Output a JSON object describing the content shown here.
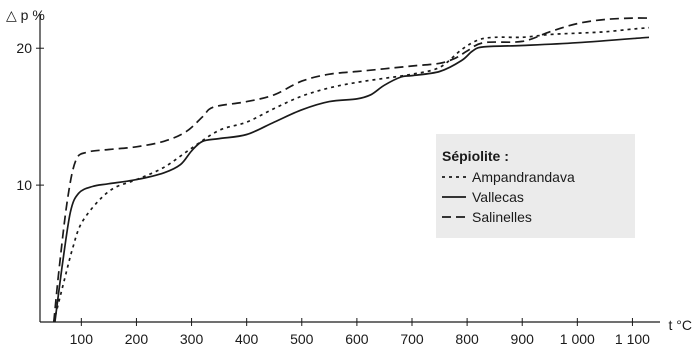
{
  "chart_data": {
    "type": "line",
    "title": "",
    "xlabel": "t °C",
    "ylabel": "△ p %",
    "xlim": [
      25,
      1150
    ],
    "ylim": [
      0,
      22.5
    ],
    "x_ticks": [
      {
        "value": 100,
        "label": "100"
      },
      {
        "value": 200,
        "label": "200"
      },
      {
        "value": 300,
        "label": "300"
      },
      {
        "value": 400,
        "label": "400"
      },
      {
        "value": 500,
        "label": "500"
      },
      {
        "value": 600,
        "label": "600"
      },
      {
        "value": 700,
        "label": "700"
      },
      {
        "value": 800,
        "label": "800"
      },
      {
        "value": 900,
        "label": "900"
      },
      {
        "value": 1000,
        "label": "1 000"
      },
      {
        "value": 1100,
        "label": "1 100"
      }
    ],
    "y_ticks": [
      {
        "value": 10,
        "label": "10"
      },
      {
        "value": 20,
        "label": "20"
      }
    ],
    "grid": false,
    "legend": {
      "title": "Sépiolite :",
      "position": "right",
      "background": "#ebebeb"
    },
    "series": [
      {
        "name": "Ampandrandava",
        "style": "dotted",
        "points": [
          [
            50,
            0
          ],
          [
            70,
            3.2
          ],
          [
            85,
            5.5
          ],
          [
            100,
            7.2
          ],
          [
            130,
            8.8
          ],
          [
            160,
            9.8
          ],
          [
            200,
            10.4
          ],
          [
            250,
            11.3
          ],
          [
            300,
            12.7
          ],
          [
            350,
            14
          ],
          [
            400,
            14.6
          ],
          [
            450,
            15.6
          ],
          [
            500,
            16.5
          ],
          [
            550,
            17.1
          ],
          [
            600,
            17.5
          ],
          [
            650,
            17.8
          ],
          [
            700,
            18.1
          ],
          [
            750,
            18.6
          ],
          [
            790,
            19.9
          ],
          [
            820,
            20.6
          ],
          [
            850,
            20.8
          ],
          [
            900,
            20.8
          ],
          [
            950,
            21
          ],
          [
            1000,
            21.1
          ],
          [
            1050,
            21.2
          ],
          [
            1100,
            21.4
          ],
          [
            1130,
            21.5
          ]
        ]
      },
      {
        "name": "Vallecas",
        "style": "solid",
        "points": [
          [
            52,
            0
          ],
          [
            65,
            4
          ],
          [
            80,
            8
          ],
          [
            95,
            9.4
          ],
          [
            120,
            9.9
          ],
          [
            150,
            10.1
          ],
          [
            200,
            10.4
          ],
          [
            250,
            10.9
          ],
          [
            280,
            11.5
          ],
          [
            300,
            12.5
          ],
          [
            320,
            13.2
          ],
          [
            350,
            13.4
          ],
          [
            400,
            13.7
          ],
          [
            450,
            14.6
          ],
          [
            500,
            15.5
          ],
          [
            550,
            16.1
          ],
          [
            600,
            16.3
          ],
          [
            625,
            16.6
          ],
          [
            650,
            17.3
          ],
          [
            680,
            17.9
          ],
          [
            700,
            18
          ],
          [
            750,
            18.3
          ],
          [
            790,
            19.1
          ],
          [
            810,
            19.8
          ],
          [
            830,
            20.1
          ],
          [
            900,
            20.2
          ],
          [
            1000,
            20.4
          ],
          [
            1130,
            20.8
          ]
        ]
      },
      {
        "name": "Salinelles",
        "style": "dashed",
        "points": [
          [
            50,
            0
          ],
          [
            60,
            4
          ],
          [
            75,
            9
          ],
          [
            90,
            11.8
          ],
          [
            110,
            12.4
          ],
          [
            150,
            12.6
          ],
          [
            200,
            12.8
          ],
          [
            250,
            13.2
          ],
          [
            290,
            13.9
          ],
          [
            320,
            15
          ],
          [
            340,
            15.7
          ],
          [
            400,
            16.1
          ],
          [
            450,
            16.6
          ],
          [
            500,
            17.6
          ],
          [
            550,
            18.1
          ],
          [
            600,
            18.3
          ],
          [
            650,
            18.5
          ],
          [
            700,
            18.7
          ],
          [
            750,
            18.9
          ],
          [
            780,
            19.3
          ],
          [
            800,
            19.8
          ],
          [
            830,
            20.4
          ],
          [
            900,
            20.5
          ],
          [
            950,
            21.2
          ],
          [
            1000,
            21.8
          ],
          [
            1050,
            22.1
          ],
          [
            1100,
            22.2
          ],
          [
            1130,
            22.2
          ]
        ]
      }
    ]
  }
}
